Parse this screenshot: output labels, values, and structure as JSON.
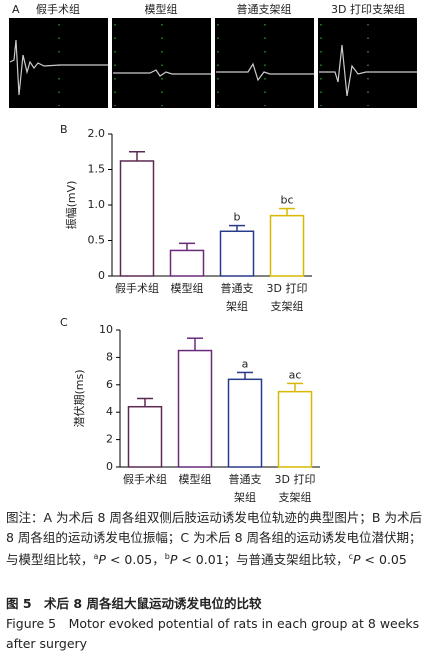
{
  "panel_a": {
    "label": "A",
    "titles": [
      "假手术组",
      "模型组",
      "普通支架组",
      "3D 打印支架组"
    ]
  },
  "chart_data": [
    {
      "type": "bar",
      "label": "B",
      "y_label": "振幅(mV)",
      "categories": [
        [
          "假手术组"
        ],
        [
          "模型组"
        ],
        [
          "普通支",
          "架组"
        ],
        [
          "3D 打印",
          "支架组"
        ]
      ],
      "values": [
        1.62,
        0.36,
        0.63,
        0.85
      ],
      "errors": [
        0.13,
        0.1,
        0.08,
        0.1
      ],
      "annotations": [
        null,
        null,
        "b",
        "bc"
      ],
      "colors": [
        "#5a2a50",
        "#6a2a7a",
        "#2a3a8a",
        "#d8b800"
      ],
      "ylim": [
        0,
        2
      ],
      "yticks": [
        0,
        0.5,
        {
          "value": 1,
          "label": "1.0"
        },
        1.5,
        {
          "value": 2,
          "label": "2.0"
        }
      ]
    },
    {
      "type": "bar",
      "label": "C",
      "y_label": "潜伏期(ms)",
      "categories": [
        [
          "假手术组"
        ],
        [
          "模型组"
        ],
        [
          "普通支",
          "架组"
        ],
        [
          "3D 打印",
          "支架组"
        ]
      ],
      "values": [
        4.4,
        8.5,
        6.4,
        5.5
      ],
      "errors": [
        0.6,
        0.9,
        0.5,
        0.6
      ],
      "annotations": [
        null,
        null,
        "a",
        "ac"
      ],
      "colors": [
        "#5a2a50",
        "#6a2a7a",
        "#2a3a8a",
        "#d8b800"
      ],
      "ylim": [
        0,
        10
      ],
      "yticks": [
        0,
        2,
        4,
        6,
        8,
        10
      ]
    }
  ],
  "caption": {
    "segments": [
      "图注：A 为术后 8 周各组双侧后肢运动诱发电位轨迹的典型图片；B 为术后 8 周各组的运动诱发电位振幅；C 为术后 8 周各组的运动诱发电位潜伏期；与模型组比较，",
      "a",
      "P",
      " < 0.05，",
      "b",
      "P",
      " < 0.01；与普通支架组比较，",
      "c",
      "P",
      " < 0.05"
    ]
  },
  "figure_title": "图 5　术后 8 周各组大鼠运动诱发电位的比较",
  "figure_title_en": "Figure 5　Motor evoked potential of rats in each group at 8 weeks after surgery"
}
